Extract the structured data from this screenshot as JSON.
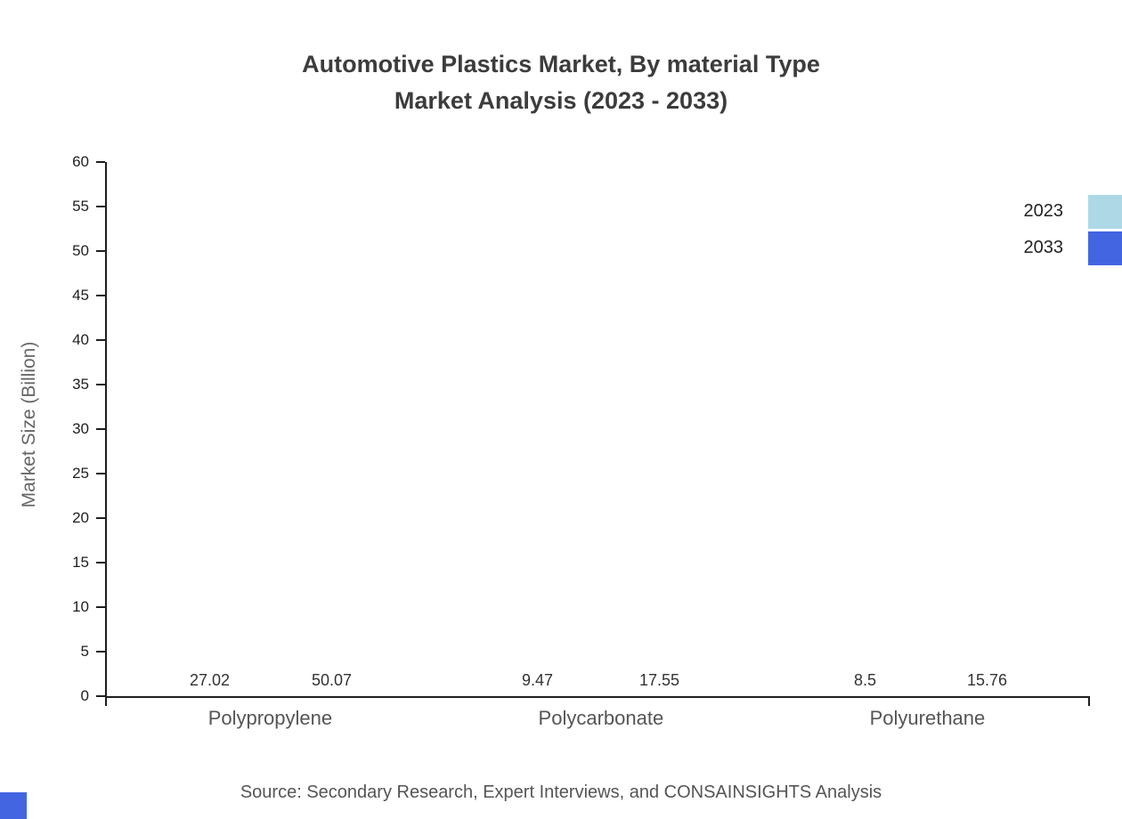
{
  "title_line1": "Automotive Plastics Market, By material Type",
  "title_line2": "Market Analysis (2023 - 2033)",
  "source_note": "Source: Secondary Research, Expert Interviews, and CONSAINSIGHTS Analysis",
  "colors": {
    "series_2023": "#add8e6",
    "series_2033": "#4365e1",
    "axis": "#1f1f1f",
    "title_text": "#3c3c3c",
    "muted_text": "#555555"
  },
  "chart_data": {
    "type": "bar",
    "title": "Automotive Plastics Market, By material Type Market Analysis (2023 - 2033)",
    "categories": [
      "Polypropylene",
      "Polycarbonate",
      "Polyurethane"
    ],
    "series": [
      {
        "name": "2023",
        "color": "#add8e6",
        "values": [
          27.02,
          9.47,
          8.5
        ]
      },
      {
        "name": "2033",
        "color": "#4365e1",
        "values": [
          50.07,
          17.55,
          15.76
        ]
      }
    ],
    "xlabel": "",
    "ylabel": "Market Size (Billion)",
    "ylim": [
      0,
      60
    ],
    "yticks": [
      0,
      5,
      10,
      15,
      20,
      25,
      30,
      35,
      40,
      45,
      50,
      55,
      60
    ],
    "grid": false,
    "legend_position": "top-right"
  }
}
